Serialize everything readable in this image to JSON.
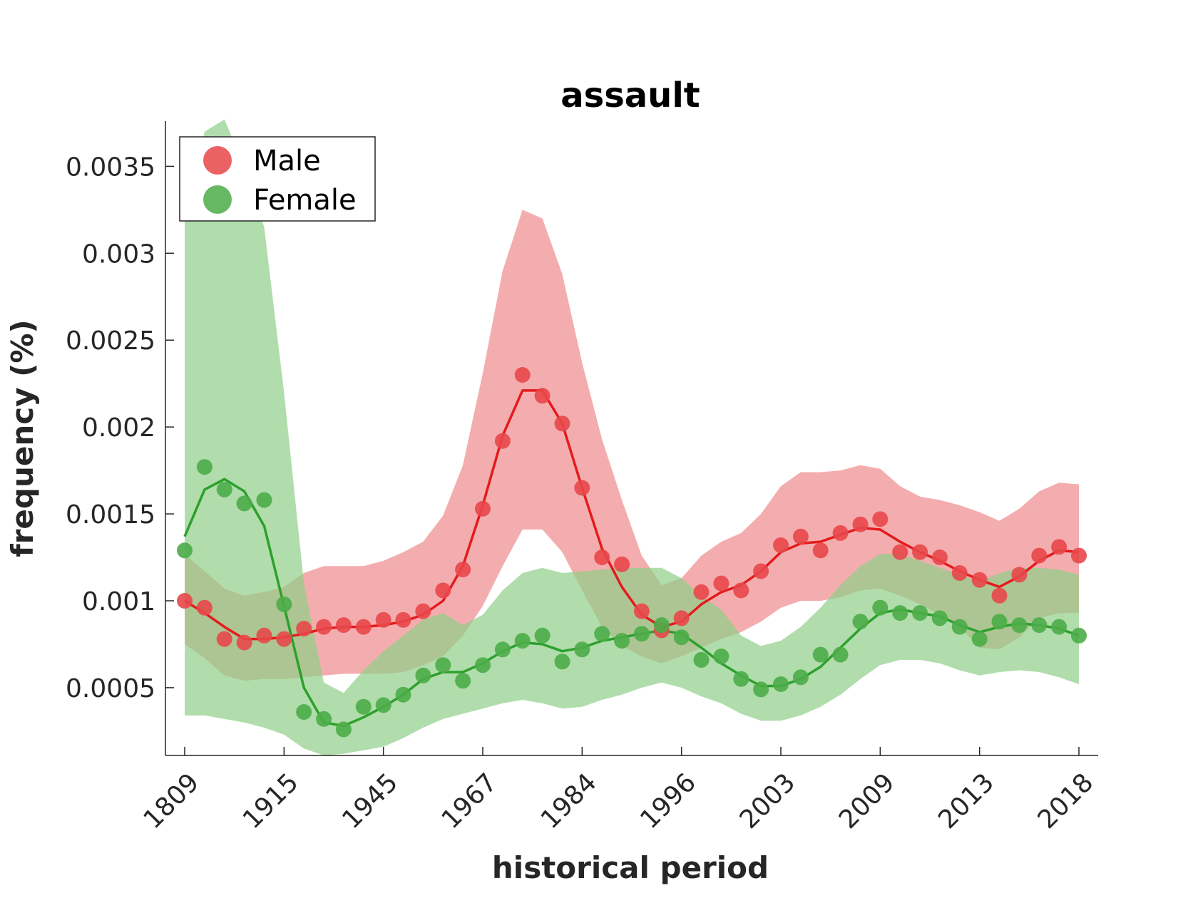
{
  "chart_data": {
    "type": "line",
    "title": "assault",
    "xlabel": "historical period",
    "ylabel": "frequency (%)",
    "x_tick_labels": [
      "1809",
      "1915",
      "1945",
      "1967",
      "1984",
      "1996",
      "2003",
      "2009",
      "2013",
      "2018"
    ],
    "y_ticks": [
      0.0005,
      0.001,
      0.0015,
      0.002,
      0.0025,
      0.003,
      0.0035
    ],
    "y_tick_labels": [
      "0.0005",
      "0.001",
      "0.0015",
      "0.002",
      "0.0025",
      "0.003",
      "0.0035"
    ],
    "ylim": [
      0.00011,
      0.00376
    ],
    "legend_position": "top-left",
    "series": [
      {
        "name": "Male",
        "color": "#e41a1c",
        "band_color": "#ef8a8c",
        "dot_color": "#e8474a",
        "points": [
          0.001,
          0.00096,
          0.00078,
          0.00076,
          0.0008,
          0.00078,
          0.00084,
          0.00085,
          0.00086,
          0.00085,
          0.00089,
          0.00089,
          0.00094,
          0.00106,
          0.00118,
          0.00153,
          0.00192,
          0.0023,
          0.00218,
          0.00202,
          0.00165,
          0.00125,
          0.00121,
          0.00094,
          0.00083,
          0.0009,
          0.00105,
          0.0011,
          0.00106,
          0.00117,
          0.00132,
          0.00137,
          0.00129,
          0.00139,
          0.00144,
          0.00147,
          0.00128,
          0.00128,
          0.00125,
          0.00116,
          0.00112,
          0.00103,
          0.00115,
          0.00126,
          0.00131,
          0.00126
        ],
        "smooth": [
          0.001,
          0.00093,
          0.00085,
          0.00078,
          0.00078,
          0.00079,
          0.00081,
          0.00084,
          0.00085,
          0.00085,
          0.00086,
          0.00088,
          0.00092,
          0.001,
          0.0012,
          0.00155,
          0.00195,
          0.00221,
          0.00221,
          0.00202,
          0.00165,
          0.0013,
          0.00108,
          0.00092,
          0.00085,
          0.00088,
          0.00098,
          0.00105,
          0.00109,
          0.00117,
          0.00128,
          0.00133,
          0.00134,
          0.00138,
          0.00142,
          0.00141,
          0.00134,
          0.00128,
          0.00123,
          0.00117,
          0.00112,
          0.00108,
          0.00114,
          0.00123,
          0.00129,
          0.00128
        ],
        "lower": [
          0.00075,
          0.00067,
          0.00057,
          0.00054,
          0.00055,
          0.00055,
          0.00056,
          0.00057,
          0.00058,
          0.00058,
          0.00058,
          0.00059,
          0.00063,
          0.00068,
          0.0008,
          0.00097,
          0.0012,
          0.00141,
          0.00141,
          0.00128,
          0.00106,
          0.00085,
          0.00074,
          0.00068,
          0.00064,
          0.00068,
          0.00073,
          0.00078,
          0.00082,
          0.00088,
          0.00096,
          0.001,
          0.001,
          0.00102,
          0.00106,
          0.00107,
          0.00103,
          0.00098,
          0.00092,
          0.00085,
          0.00073,
          0.00072,
          0.00079,
          0.0009,
          0.00093,
          0.00093
        ],
        "upper": [
          0.00127,
          0.00117,
          0.00107,
          0.00103,
          0.00105,
          0.00108,
          0.00116,
          0.0012,
          0.0012,
          0.0012,
          0.00123,
          0.00128,
          0.00134,
          0.00149,
          0.00178,
          0.00231,
          0.0029,
          0.00325,
          0.0032,
          0.00288,
          0.00237,
          0.00193,
          0.00158,
          0.00126,
          0.00109,
          0.00113,
          0.00126,
          0.00134,
          0.00139,
          0.0015,
          0.00166,
          0.00174,
          0.00174,
          0.00175,
          0.00178,
          0.00176,
          0.00166,
          0.0016,
          0.00158,
          0.00155,
          0.00151,
          0.00146,
          0.00153,
          0.00163,
          0.00168,
          0.00167
        ]
      },
      {
        "name": "Female",
        "color": "#2ca02c",
        "band_color": "#8fce88",
        "dot_color": "#4cac48",
        "points": [
          0.00129,
          0.00177,
          0.00164,
          0.00156,
          0.00158,
          0.00098,
          0.00036,
          0.00032,
          0.00026,
          0.00039,
          0.0004,
          0.00046,
          0.00057,
          0.00063,
          0.00054,
          0.00063,
          0.00072,
          0.00077,
          0.0008,
          0.00065,
          0.00072,
          0.00081,
          0.00077,
          0.00081,
          0.00086,
          0.00079,
          0.00066,
          0.00068,
          0.00055,
          0.00049,
          0.00052,
          0.00056,
          0.00069,
          0.00069,
          0.00088,
          0.00096,
          0.00093,
          0.00093,
          0.0009,
          0.00085,
          0.00078,
          0.00088,
          0.00086,
          0.00086,
          0.00085,
          0.0008
        ],
        "smooth": [
          0.00137,
          0.00164,
          0.0017,
          0.00163,
          0.00143,
          0.00097,
          0.0005,
          0.0003,
          0.00028,
          0.00033,
          0.00039,
          0.00046,
          0.00055,
          0.00059,
          0.00059,
          0.00064,
          0.00071,
          0.00076,
          0.00075,
          0.00071,
          0.00073,
          0.00077,
          0.00079,
          0.00081,
          0.00083,
          0.00081,
          0.00073,
          0.00064,
          0.00057,
          0.00051,
          0.00051,
          0.00055,
          0.00062,
          0.00073,
          0.00084,
          0.00093,
          0.00095,
          0.00093,
          0.00091,
          0.00086,
          0.00082,
          0.00085,
          0.00087,
          0.00086,
          0.00084,
          0.0008
        ],
        "lower": [
          0.00034,
          0.00034,
          0.00032,
          0.0003,
          0.00027,
          0.00023,
          0.00015,
          0.00011,
          0.00012,
          0.00014,
          0.00016,
          0.00021,
          0.00027,
          0.00032,
          0.00035,
          0.00038,
          0.00041,
          0.00043,
          0.00041,
          0.00038,
          0.00039,
          0.00043,
          0.00046,
          0.0005,
          0.00053,
          0.0005,
          0.00045,
          0.00041,
          0.00035,
          0.00031,
          0.00031,
          0.00034,
          0.00039,
          0.00046,
          0.00055,
          0.00063,
          0.00066,
          0.00066,
          0.00064,
          0.0006,
          0.00057,
          0.00059,
          0.0006,
          0.00059,
          0.00056,
          0.00052
        ],
        "upper": [
          0.0032,
          0.0037,
          0.00377,
          0.0035,
          0.00315,
          0.0022,
          0.0011,
          0.00053,
          0.00047,
          0.0006,
          0.00071,
          0.0008,
          0.00089,
          0.00093,
          0.00086,
          0.00092,
          0.00106,
          0.00116,
          0.00119,
          0.00116,
          0.00117,
          0.00118,
          0.00119,
          0.00119,
          0.00119,
          0.00113,
          0.00103,
          0.00095,
          0.0008,
          0.00074,
          0.00077,
          0.00085,
          0.00096,
          0.00109,
          0.0012,
          0.00127,
          0.00127,
          0.00123,
          0.00119,
          0.00115,
          0.00111,
          0.00116,
          0.00119,
          0.00119,
          0.00118,
          0.00115
        ]
      }
    ]
  }
}
